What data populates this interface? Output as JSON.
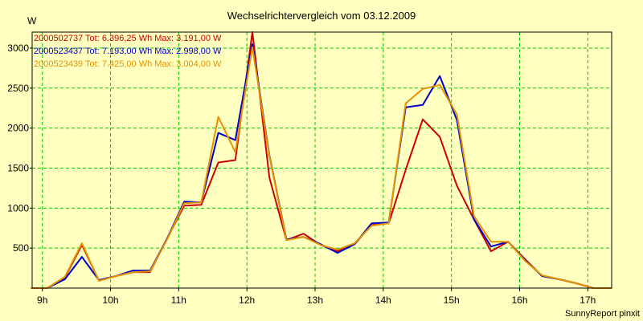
{
  "chart_data": {
    "type": "line",
    "title": "Wechselrichtervergleich vom 03.12.2009",
    "ylabel": "W",
    "xlabel": "",
    "footer": "SunnyReport pinxit",
    "xlim": [
      8.85,
      17.35
    ],
    "ylim": [
      0,
      3200
    ],
    "x_ticks": [
      9,
      10,
      11,
      12,
      13,
      14,
      15,
      16,
      17
    ],
    "x_tick_labels": [
      "9h",
      "10h",
      "11h",
      "12h",
      "13h",
      "14h",
      "15h",
      "16h",
      "17h"
    ],
    "y_ticks": [
      500,
      1000,
      1500,
      2000,
      2500,
      3000
    ],
    "y_tick_labels": [
      "500",
      "1000",
      "1500",
      "2000",
      "2500",
      "3000"
    ],
    "grid": true,
    "legend_position": "top-left",
    "x": [
      8.83,
      9.07,
      9.33,
      9.58,
      9.83,
      10.08,
      10.33,
      10.58,
      10.83,
      11.08,
      11.33,
      11.58,
      11.83,
      12.08,
      12.33,
      12.58,
      12.83,
      13.08,
      13.33,
      13.58,
      13.83,
      14.08,
      14.33,
      14.58,
      14.83,
      15.08,
      15.33,
      15.58,
      15.83,
      16.08,
      16.33,
      16.58,
      16.83,
      17.08,
      17.35
    ],
    "series": [
      {
        "name": "2000502737",
        "legend_label": "2000502737 Tot: 6.396,25 Wh Max: 3.191,00 W",
        "color": "#cc0000",
        "values": [
          0,
          0,
          130,
          540,
          95,
          150,
          200,
          200,
          620,
          1030,
          1040,
          1570,
          1600,
          3200,
          1380,
          600,
          680,
          540,
          460,
          550,
          790,
          810,
          1480,
          2110,
          1890,
          1280,
          860,
          460,
          580,
          360,
          150,
          110,
          60,
          0,
          0
        ]
      },
      {
        "name": "2000523437",
        "legend_label": "2000523437 Tot: 7.193,00 Wh Max: 2.998,00 W",
        "color": "#0000cc",
        "values": [
          0,
          0,
          110,
          390,
          100,
          150,
          220,
          220,
          620,
          1080,
          1070,
          1940,
          1850,
          3050,
          1660,
          610,
          640,
          550,
          440,
          550,
          810,
          820,
          2260,
          2290,
          2650,
          2100,
          860,
          520,
          580,
          350,
          150,
          110,
          60,
          0,
          0
        ]
      },
      {
        "name": "2000523439",
        "legend_label": "2000523439 Tot: 7.425,00 Wh Max: 3.004,00 W",
        "color": "#e69100",
        "values": [
          0,
          0,
          140,
          560,
          90,
          150,
          200,
          210,
          610,
          1060,
          1070,
          2140,
          1700,
          3010,
          1650,
          600,
          640,
          540,
          480,
          560,
          780,
          810,
          2310,
          2490,
          2540,
          2170,
          900,
          580,
          580,
          340,
          160,
          110,
          60,
          0,
          0
        ]
      }
    ]
  },
  "colors": {
    "background": "#ffffc0",
    "grid": "#00cc00",
    "axis": "#000000"
  }
}
